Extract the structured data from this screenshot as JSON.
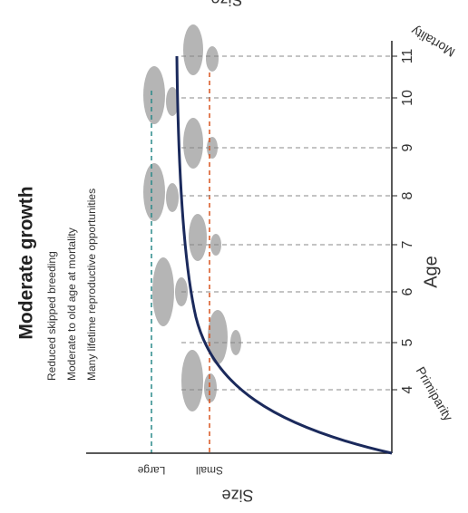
{
  "header": {
    "title": "Moderate growth",
    "bullets": [
      "Reduced skipped breeding",
      "Moderate to old age at mortality",
      "Many lifetime reproductive opportunities"
    ]
  },
  "age_axis": {
    "label": "Age",
    "ticks": [
      "4",
      "5",
      "6",
      "7",
      "8",
      "9",
      "10",
      "11"
    ]
  },
  "size_axis": {
    "label": "Size",
    "levels": [
      "Small",
      "Large"
    ]
  },
  "annotations": {
    "primiparity": "Primiparity",
    "mortality": "Mortality",
    "top_label": "Size"
  }
}
